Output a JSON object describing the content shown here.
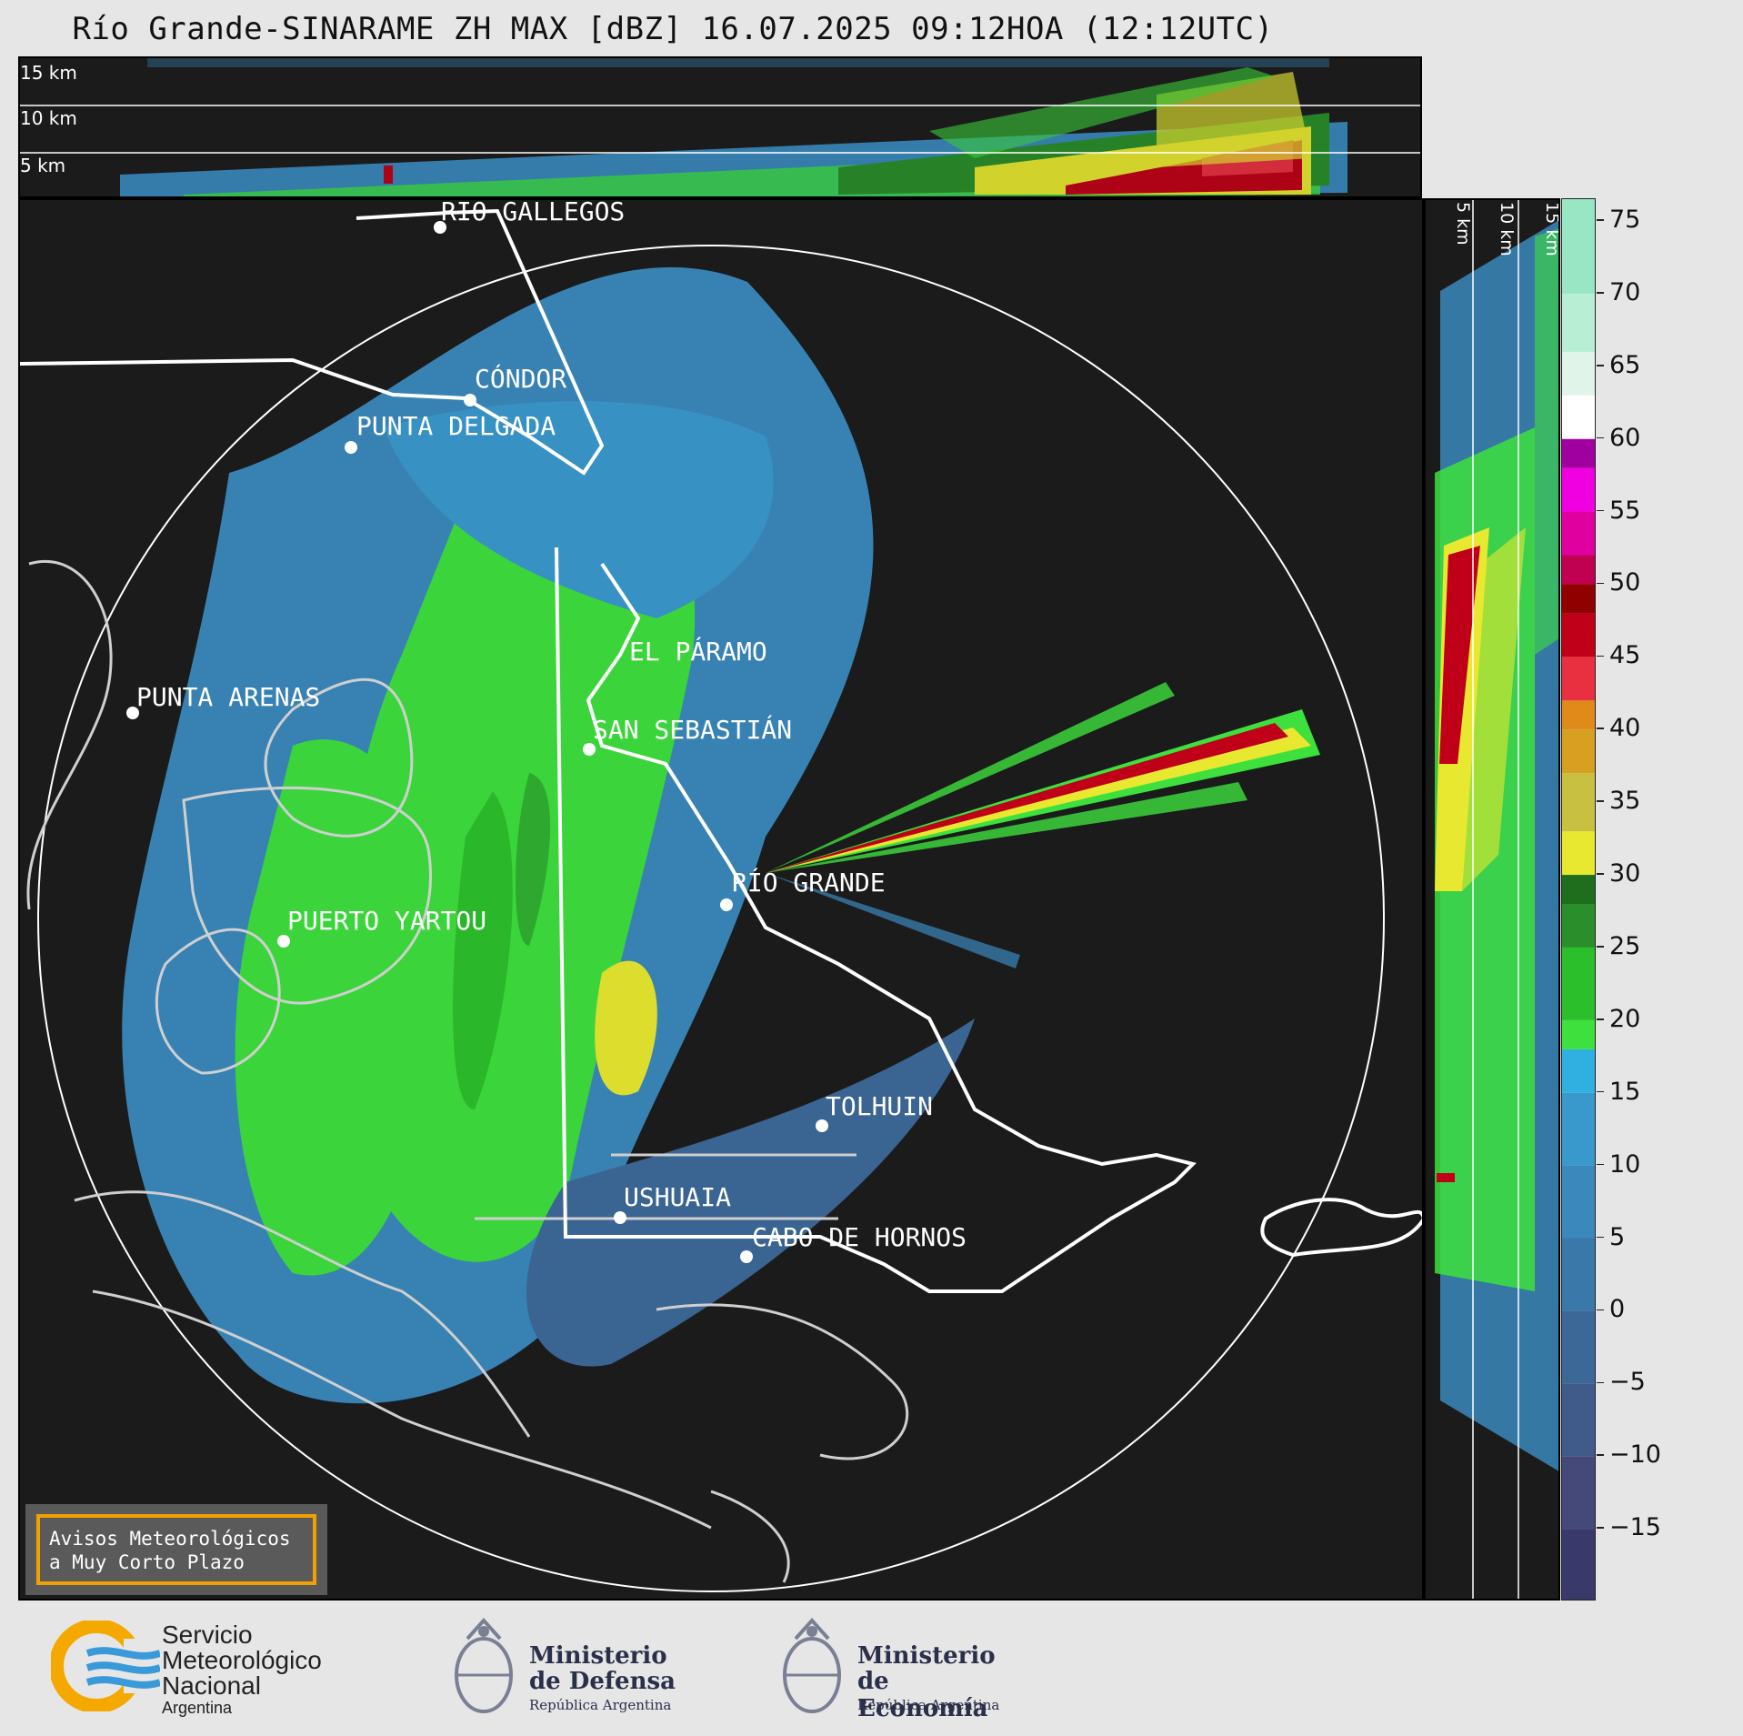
{
  "title": "Río Grande-SINARAME ZH MAX [dBZ] 16.07.2025 09:12HOA (12:12UTC)",
  "top_panel": {
    "altitude_labels": [
      "15 km",
      "10 km",
      "5 km"
    ]
  },
  "side_panel": {
    "altitude_labels": [
      "5 km",
      "10 km",
      "15 km"
    ]
  },
  "cities": [
    {
      "name": "RÍO GALLEGOS"
    },
    {
      "name": "CÓNDOR"
    },
    {
      "name": "PUNTA DELGADA"
    },
    {
      "name": "PUNTA ARENAS"
    },
    {
      "name": "EL PÁRAMO"
    },
    {
      "name": "SAN SEBASTIÁN"
    },
    {
      "name": "RÍO GRANDE"
    },
    {
      "name": "PUERTO YARTOU"
    },
    {
      "name": "TOLHUIN"
    },
    {
      "name": "USHUAIA"
    },
    {
      "name": "CABO DE HORNOS"
    }
  ],
  "colorbar": {
    "ticks": [
      "75",
      "70",
      "65",
      "60",
      "55",
      "50",
      "45",
      "40",
      "35",
      "30",
      "25",
      "20",
      "15",
      "10",
      "5",
      "0",
      "−5",
      "−10",
      "−15"
    ],
    "range": [
      -20,
      76.5
    ],
    "colors": [
      "#3a3a6a",
      "#44497a",
      "#405a8a",
      "#3c6898",
      "#3b78aa",
      "#3a88bc",
      "#3998cc",
      "#2fb0e0",
      "#3de03d",
      "#2bc02b",
      "#2a8f2a",
      "#1e6e1e",
      "#e8e830",
      "#c8c040",
      "#d8a020",
      "#e08a1a",
      "#e83040",
      "#c00018",
      "#900000",
      "#c00050",
      "#e000a0",
      "#f000e0",
      "#a000a0",
      "#ffffff",
      "#e0f4ea",
      "#b8eed4",
      "#98e6c4",
      "#80dcb8"
    ],
    "color_stops": [
      -20,
      -15,
      -10,
      -5,
      0,
      5,
      10,
      15,
      18,
      20,
      25,
      28,
      30,
      33,
      37,
      40,
      42,
      45,
      48,
      50,
      52,
      55,
      58,
      60,
      63,
      66,
      70,
      76.5
    ]
  },
  "aviso": {
    "line1": "Avisos Meteorológicos",
    "line2": "a Muy Corto Plazo"
  },
  "logos": {
    "smn": {
      "line1": "Servicio",
      "line2": "Meteorológico",
      "line3": "Nacional",
      "line4": "Argentina"
    },
    "defensa": {
      "line1": "Ministerio",
      "line2": "de Defensa",
      "line3": "República Argentina"
    },
    "economia": {
      "line1": "Ministerio",
      "line2": "de Economía",
      "line3": "República Argentina"
    }
  },
  "colors": {
    "background": "#e6e6e6",
    "panel": "#1b1b1b",
    "accent": "#f0a000",
    "smn_orange": "#f5a800",
    "smn_blue": "#3a9ad9"
  }
}
